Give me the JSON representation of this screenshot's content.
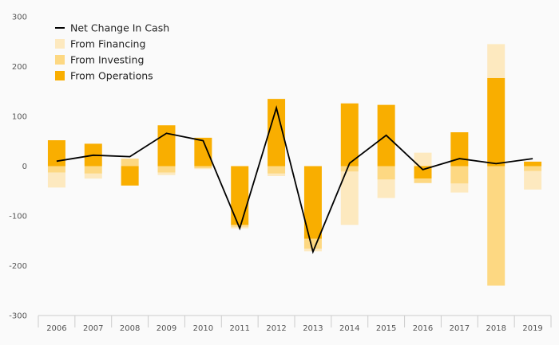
{
  "chart_data": {
    "type": "bar",
    "title": "",
    "xlabel": "",
    "ylabel": "",
    "categories": [
      "2006",
      "2007",
      "2008",
      "2009",
      "2010",
      "2011",
      "2012",
      "2013",
      "2014",
      "2015",
      "2016",
      "2017",
      "2018",
      "2019"
    ],
    "ylim": [
      -300,
      300
    ],
    "yticks": [
      -300,
      -200,
      -100,
      0,
      100,
      200,
      300
    ],
    "grid": false,
    "legend_position": "top-left",
    "series": [
      {
        "name": "From Financing",
        "kind": "bar",
        "color": "#fde9bf",
        "values": [
          -30,
          -10,
          0,
          -5,
          -2,
          -3,
          -5,
          -5,
          -107,
          -37,
          27,
          -18,
          68,
          -37
        ]
      },
      {
        "name": "From Investing",
        "kind": "bar",
        "color": "#fdd882",
        "values": [
          -13,
          -15,
          15,
          -13,
          -4,
          -4,
          -15,
          -20,
          -11,
          -27,
          -9,
          -35,
          -240,
          -10
        ]
      },
      {
        "name": "From Operations",
        "kind": "bar",
        "color": "#f9ae00",
        "values": [
          52,
          45,
          -39,
          82,
          57,
          -118,
          135,
          -146,
          126,
          123,
          -25,
          68,
          177,
          9
        ]
      },
      {
        "name": "Net Change In Cash",
        "kind": "line",
        "color": "#000000",
        "values": [
          10,
          22,
          19,
          66,
          51,
          -125,
          117,
          -172,
          6,
          62,
          -7,
          15,
          5,
          15
        ]
      }
    ]
  }
}
